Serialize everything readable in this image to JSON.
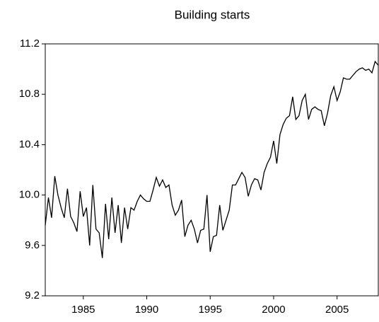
{
  "chart_data": {
    "type": "line",
    "title": "Building starts",
    "x": [
      1982,
      1982.25,
      1982.5,
      1982.75,
      1983,
      1983.25,
      1983.5,
      1983.75,
      1984,
      1984.25,
      1984.5,
      1984.75,
      1985,
      1985.25,
      1985.5,
      1985.75,
      1986,
      1986.25,
      1986.5,
      1986.75,
      1987,
      1987.25,
      1987.5,
      1987.75,
      1988,
      1988.25,
      1988.5,
      1988.75,
      1989,
      1989.25,
      1989.5,
      1989.75,
      1990,
      1990.25,
      1990.5,
      1990.75,
      1991,
      1991.25,
      1991.5,
      1991.75,
      1992,
      1992.25,
      1992.5,
      1992.75,
      1993,
      1993.25,
      1993.5,
      1993.75,
      1994,
      1994.25,
      1994.5,
      1994.75,
      1995,
      1995.25,
      1995.5,
      1995.75,
      1996,
      1996.25,
      1996.5,
      1996.75,
      1997,
      1997.25,
      1997.5,
      1997.75,
      1998,
      1998.25,
      1998.5,
      1998.75,
      1999,
      1999.25,
      1999.5,
      1999.75,
      2000,
      2000.25,
      2000.5,
      2000.75,
      2001,
      2001.25,
      2001.5,
      2001.75,
      2002,
      2002.25,
      2002.5,
      2002.75,
      2003,
      2003.25,
      2003.5,
      2003.75,
      2004,
      2004.25,
      2004.5,
      2004.75,
      2005,
      2005.25,
      2005.5,
      2005.75,
      2006,
      2006.25,
      2006.5,
      2006.75,
      2007,
      2007.25,
      2007.5,
      2007.75,
      2008,
      2008.25
    ],
    "series": [
      {
        "color": "#000000",
        "values": [
          9.76,
          9.98,
          9.82,
          10.15,
          10.0,
          9.9,
          9.82,
          10.05,
          9.83,
          9.78,
          9.71,
          10.03,
          9.83,
          9.9,
          9.6,
          10.08,
          9.73,
          9.7,
          9.5,
          9.93,
          9.65,
          9.98,
          9.7,
          9.92,
          9.62,
          9.9,
          9.73,
          9.9,
          9.88,
          9.95,
          10.0,
          9.97,
          9.95,
          9.95,
          10.04,
          10.14,
          10.07,
          10.12,
          10.06,
          10.08,
          9.92,
          9.84,
          9.88,
          9.96,
          9.67,
          9.76,
          9.8,
          9.73,
          9.62,
          9.72,
          9.73,
          10.0,
          9.55,
          9.67,
          9.68,
          9.92,
          9.72,
          9.8,
          9.88,
          10.08,
          10.08,
          10.13,
          10.18,
          10.14,
          9.99,
          10.08,
          10.13,
          10.12,
          10.04,
          10.18,
          10.25,
          10.3,
          10.43,
          10.25,
          10.48,
          10.56,
          10.61,
          10.63,
          10.78,
          10.6,
          10.63,
          10.75,
          10.8,
          10.6,
          10.68,
          10.7,
          10.68,
          10.67,
          10.55,
          10.65,
          10.79,
          10.86,
          10.75,
          10.82,
          10.93,
          10.92,
          10.92,
          10.95,
          10.98,
          11.0,
          11.01,
          10.99,
          11.0,
          10.97,
          11.06,
          11.03
        ]
      }
    ],
    "xlim": [
      1982,
      2008.25
    ],
    "xticks": [
      1985,
      1990,
      1995,
      2000,
      2005
    ],
    "ylim": [
      9.2,
      11.2
    ],
    "yticks": [
      9.2,
      9.6,
      {
        "value": 10,
        "label": "10.0"
      },
      10.4,
      10.8,
      11.2
    ]
  }
}
